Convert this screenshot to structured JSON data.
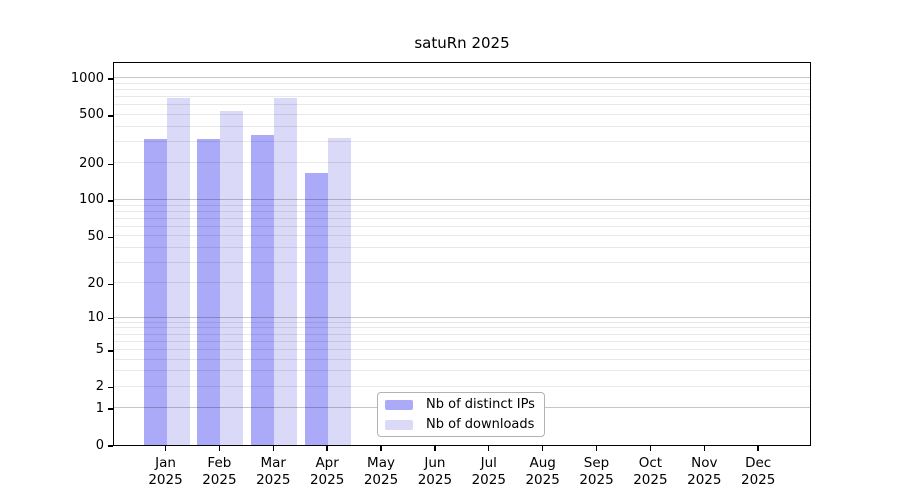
{
  "title": "satuRn 2025",
  "colors": {
    "distinct_ips": "#aaaaf8",
    "downloads": "#dadaf8",
    "grid_major": "rgba(0,0,0,0.22)",
    "grid_minor": "rgba(0,0,0,0.09)",
    "frame": "#000000",
    "background": "#ffffff"
  },
  "legend": {
    "items": [
      {
        "key": "distinct_ips",
        "label": "Nb of distinct IPs"
      },
      {
        "key": "downloads",
        "label": "Nb of downloads"
      }
    ]
  },
  "chart_data": {
    "type": "bar",
    "title": "satuRn 2025",
    "categories": [
      "Jan 2025",
      "Feb 2025",
      "Mar 2025",
      "Apr 2025",
      "May 2025",
      "Jun 2025",
      "Jul 2025",
      "Aug 2025",
      "Sep 2025",
      "Oct 2025",
      "Nov 2025",
      "Dec 2025"
    ],
    "series": [
      {
        "name": "Nb of distinct IPs",
        "values": [
          315,
          315,
          345,
          168,
          null,
          null,
          null,
          null,
          null,
          null,
          null,
          null
        ]
      },
      {
        "name": "Nb of downloads",
        "values": [
          695,
          535,
          685,
          325,
          null,
          null,
          null,
          null,
          null,
          null,
          null,
          null
        ]
      }
    ],
    "y_ticks": [
      0,
      1,
      2,
      5,
      10,
      20,
      50,
      100,
      200,
      500,
      1000
    ],
    "y_scale": "log10(1+x)",
    "ylim": [
      0,
      1400
    ],
    "xlabel": "",
    "ylabel": "",
    "grid": "on",
    "legend_position": "lower-center-inside"
  }
}
